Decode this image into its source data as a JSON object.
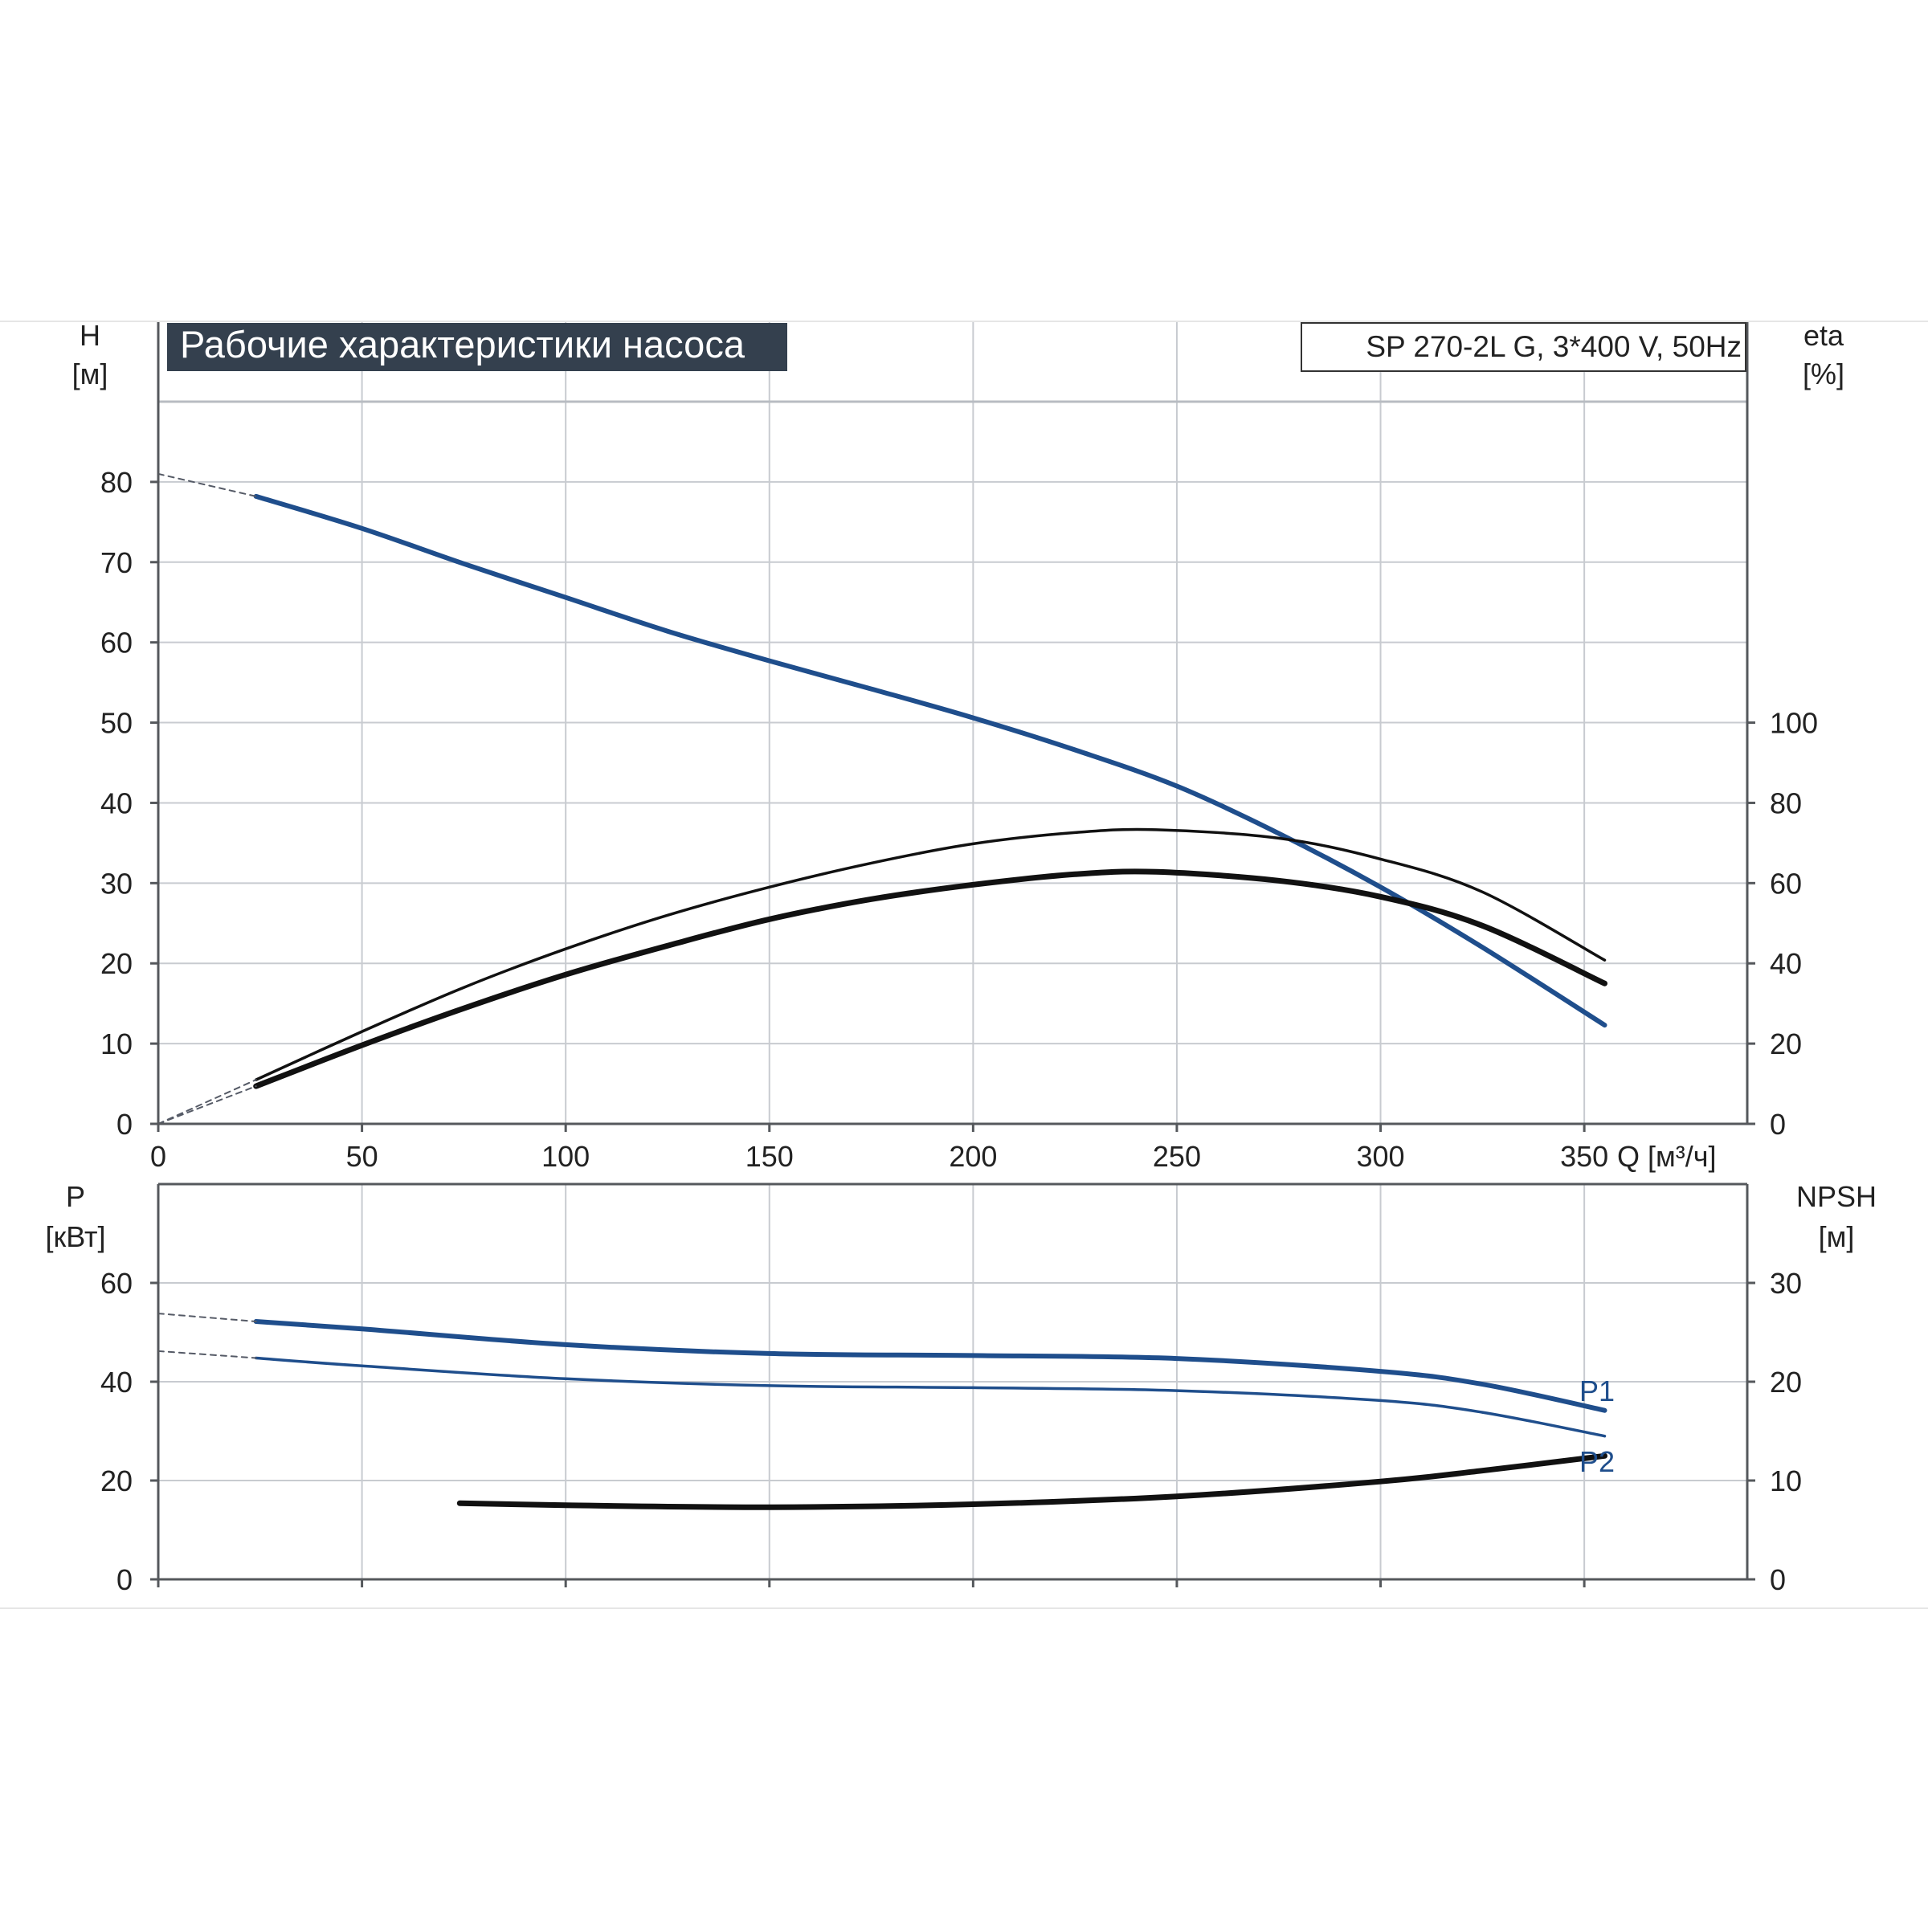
{
  "colors": {
    "background": "#ffffff",
    "grid": "#c8cbd0",
    "axis": "#55585c",
    "text": "#222222",
    "title_bg": "#34404e",
    "title_fg": "#ffffff",
    "blue_curve": "#1f4e8c",
    "black_curve": "#111111"
  },
  "chart_data": [
    {
      "id": "performance",
      "type": "line",
      "title": "Рабочие характеристики насоса",
      "model_label": "SP 270-2L G, 3*400 V, 50Hz",
      "xlabel": "Q [м³/ч]",
      "xlim": [
        0,
        390
      ],
      "x_ticks": [
        0,
        50,
        100,
        150,
        200,
        250,
        300,
        350
      ],
      "ylabel_left": [
        "H",
        "[м]"
      ],
      "ylim_left": [
        0,
        90
      ],
      "y_ticks_left": [
        0,
        10,
        20,
        30,
        40,
        50,
        60,
        70,
        80
      ],
      "ylabel_right": [
        "eta",
        "[%]"
      ],
      "ylim_right": [
        0,
        180
      ],
      "y_ticks_right": [
        0,
        20,
        40,
        60,
        80,
        100
      ],
      "grid": true,
      "series": [
        {
          "key": "head",
          "axis": "left",
          "style": "blue-thick",
          "x": [
            24,
            50,
            75,
            100,
            125,
            150,
            175,
            200,
            225,
            250,
            275,
            300,
            325,
            355
          ],
          "y": [
            78.2,
            74.2,
            69.8,
            65.6,
            61.4,
            57.7,
            54.2,
            50.6,
            46.6,
            42.1,
            36.2,
            29.5,
            22.0,
            12.3
          ]
        },
        {
          "key": "efficiency-pump",
          "axis": "right",
          "style": "black-thin",
          "x": [
            24,
            50,
            75,
            100,
            125,
            150,
            175,
            200,
            225,
            245,
            275,
            300,
            325,
            355
          ],
          "y": [
            11,
            23,
            34,
            43.6,
            52,
            59,
            65,
            69.8,
            72.6,
            73.3,
            71.2,
            66,
            57.8,
            40.8
          ]
        },
        {
          "key": "efficiency-total",
          "axis": "right",
          "style": "black-thick",
          "x": [
            24,
            50,
            75,
            100,
            125,
            150,
            175,
            200,
            225,
            245,
            275,
            300,
            325,
            355
          ],
          "y": [
            9.4,
            19.6,
            28.8,
            37.2,
            44.4,
            51,
            56,
            59.6,
            62.2,
            62.8,
            60.6,
            56.6,
            49.4,
            35
          ]
        },
        {
          "key": "head-extrapolation",
          "axis": "left",
          "style": "dashed",
          "x": [
            0,
            24
          ],
          "y": [
            81,
            78.2
          ]
        },
        {
          "key": "efficiency-pump-extrapolation",
          "axis": "right",
          "style": "dashed",
          "x": [
            0,
            24
          ],
          "y": [
            0,
            11
          ]
        },
        {
          "key": "efficiency-total-extrapolation",
          "axis": "right",
          "style": "dashed",
          "x": [
            0,
            24
          ],
          "y": [
            0,
            9.4
          ]
        }
      ]
    },
    {
      "id": "power",
      "type": "line",
      "xlim": [
        0,
        390
      ],
      "x_ticks": [
        0,
        50,
        100,
        150,
        200,
        250,
        300,
        350
      ],
      "ylabel_left": [
        "P",
        "[кВт]"
      ],
      "ylim_left": [
        0,
        80
      ],
      "y_ticks_left": [
        0,
        20,
        40,
        60
      ],
      "ylabel_right": [
        "NPSH",
        "[м]"
      ],
      "ylim_right": [
        0,
        40
      ],
      "y_ticks_right": [
        0,
        10,
        20,
        30
      ],
      "grid": true,
      "series": [
        {
          "name": "P1",
          "key": "p1",
          "axis": "left",
          "style": "blue-thick",
          "x": [
            24,
            50,
            100,
            150,
            200,
            250,
            300,
            325,
            355
          ],
          "y": [
            52.2,
            50.7,
            47.5,
            45.7,
            45.3,
            44.7,
            42.1,
            39.5,
            34.2
          ]
        },
        {
          "name": "P2",
          "key": "p2",
          "axis": "left",
          "style": "blue-thin",
          "x": [
            24,
            50,
            100,
            150,
            200,
            250,
            300,
            325,
            355
          ],
          "y": [
            44.8,
            43.2,
            40.6,
            39.2,
            38.8,
            38.2,
            36.2,
            33.8,
            29.0
          ]
        },
        {
          "key": "npsh",
          "axis": "right",
          "style": "black-thick",
          "x": [
            74,
            100,
            150,
            200,
            250,
            300,
            325,
            355
          ],
          "y": [
            7.7,
            7.5,
            7.3,
            7.6,
            8.4,
            9.9,
            11.0,
            12.5
          ]
        },
        {
          "key": "p1-extrapolation",
          "axis": "left",
          "style": "dashed",
          "x": [
            0,
            24
          ],
          "y": [
            53.8,
            52.2
          ]
        },
        {
          "key": "p2-extrapolation",
          "axis": "left",
          "style": "dashed",
          "x": [
            0,
            24
          ],
          "y": [
            46.2,
            44.8
          ]
        }
      ]
    }
  ]
}
